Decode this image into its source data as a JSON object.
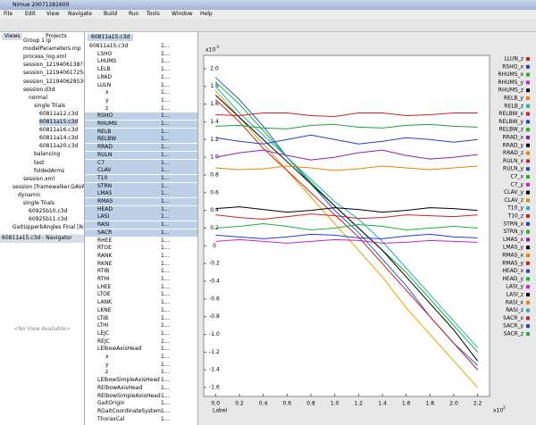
{
  "window_title": "Nimue 20071281600",
  "menu": [
    "File",
    "Edit",
    "View",
    "Navigate",
    "Build",
    "Run",
    "Tools",
    "Window",
    "Help"
  ],
  "left_panel": {
    "tabs": [
      "Views",
      "Projects"
    ],
    "tree": [
      "Group 1 ip",
      "modelParameters.mp",
      "process_log.xml",
      "session_1219406138???",
      "session_1219406172567",
      "session_1219406285362",
      "session.d3d",
      "normal",
      "single Trials",
      "60811a12.c3d",
      "60811a15.c3d",
      "60811a16.c3d",
      "60811a14.c3d",
      "60811a20.c3d",
      "balancing",
      "test",
      "foldedArms",
      "session.xml",
      "session [framewalker.GAVA...",
      "dynamic",
      "single Trials",
      "60925b10.c3d",
      "60925b11.c3d",
      "GaitUpperbAngles Final [N..."
    ]
  },
  "navigator": {
    "title": "60811a15.c3d - Navigator",
    "empty_text": "<No View Available>"
  },
  "middle_panel": {
    "tab": "60811a15.c3d",
    "column_text": "1...",
    "tree": [
      "60811a15.c3d",
      "LSHO",
      "LHUMS",
      "LELB",
      "LRAD",
      "LULN",
      "x",
      "y",
      "z",
      "RSHO",
      "RHUMS",
      "RELB",
      "RELBW",
      "RRAD",
      "RULN",
      "C7",
      "CLAV",
      "T10",
      "STRN",
      "LMAS",
      "RMAS",
      "HEAD",
      "LASI",
      "RASI",
      "SACR",
      "RHEE",
      "RTOE",
      "RANK",
      "RKNE",
      "RTIB",
      "RTHI",
      "LHEE",
      "LTOE",
      "LANK",
      "LKNE",
      "LTIB",
      "LTHI",
      "LEJC",
      "REJC",
      "LElbowAxisHead",
      "x",
      "y",
      "z",
      "LElbowSimpleAxisHead",
      "RElbowAxisHead",
      "RElbowSimpleAxisHead",
      "GaitOrigin",
      "RGaitCoordinateSystem",
      "ThoraxCal"
    ]
  },
  "chart_data": {
    "type": "line",
    "x_label": "Label",
    "x_scale": "x10",
    "x_scale_exp": "3",
    "y_scale": "x10",
    "y_scale_exp": "-5",
    "x": [
      0,
      0.2,
      0.4,
      0.6,
      0.8,
      1.0,
      1.2,
      1.4,
      1.6,
      1.8,
      2.0,
      2.2
    ],
    "xlim": [
      -0.1,
      2.3
    ],
    "xticks": [
      {
        "value": 0,
        "label": "0.0"
      },
      0.2,
      0.4,
      0.6,
      0.8,
      {
        "value": 1,
        "label": "1.0"
      },
      1.2,
      1.4,
      1.6,
      1.8,
      {
        "value": 2,
        "label": "2.0"
      },
      2.2
    ],
    "ylim": [
      -1.7,
      2.15
    ],
    "yticks": [
      {
        "value": 2,
        "label": "2.0"
      },
      1.8,
      1.6,
      1.4,
      1.2,
      {
        "value": 1,
        "label": "1.0"
      },
      0.8,
      0.6,
      0.4,
      0.2,
      0,
      -0.2,
      -0.4,
      -0.6,
      -0.8,
      {
        "value": -1,
        "label": "-1.0"
      },
      -1.2,
      -1.4,
      -1.6
    ],
    "series": [
      {
        "color": "#1f5fd0",
        "values": [
          1.9,
          1.65,
          1.35,
          1.0,
          0.7,
          0.4,
          0.15,
          -0.15,
          -0.45,
          -0.8,
          -1.1,
          -1.35
        ]
      },
      {
        "color": "#f0a000",
        "values": [
          1.75,
          1.45,
          1.15,
          0.85,
          0.55,
          0.25,
          -0.05,
          -0.35,
          -0.7,
          -1.0,
          -1.3,
          -1.6
        ]
      },
      {
        "color": "#20b030",
        "values": [
          1.85,
          1.6,
          1.3,
          1.0,
          0.72,
          0.45,
          0.2,
          -0.05,
          -0.3,
          -0.6,
          -0.9,
          -1.2
        ]
      },
      {
        "color": "#20b0c0",
        "values": [
          1.8,
          1.5,
          1.25,
          1.0,
          0.75,
          0.5,
          0.3,
          0.05,
          -0.25,
          -0.55,
          -0.85,
          -1.15
        ]
      },
      {
        "color": "#000000",
        "values": [
          1.7,
          1.45,
          1.2,
          0.95,
          0.7,
          0.45,
          0.2,
          -0.05,
          -0.35,
          -0.65,
          -0.95,
          -1.3
        ]
      },
      {
        "color": "#d02020",
        "values": [
          1.65,
          1.4,
          1.1,
          0.85,
          0.6,
          0.35,
          0.1,
          -0.2,
          -0.5,
          -0.8,
          -1.1,
          -1.4
        ]
      },
      {
        "color": "#d02020",
        "values": [
          1.48,
          1.47,
          1.5,
          1.5,
          1.47,
          1.46,
          1.5,
          1.5,
          1.47,
          1.48,
          1.5,
          1.5
        ]
      },
      {
        "color": "#20a040",
        "values": [
          1.35,
          1.36,
          1.33,
          1.32,
          1.36,
          1.37,
          1.34,
          1.33,
          1.36,
          1.37,
          1.35,
          1.34
        ]
      },
      {
        "color": "#2040d0",
        "values": [
          1.22,
          1.18,
          1.15,
          1.2,
          1.25,
          1.2,
          1.15,
          1.18,
          1.22,
          1.2,
          1.17,
          1.2
        ]
      },
      {
        "color": "#9020b0",
        "values": [
          1.0,
          1.05,
          1.08,
          1.02,
          0.97,
          1.0,
          1.05,
          1.08,
          1.02,
          0.98,
          1.0,
          1.03
        ]
      },
      {
        "color": "#f08000",
        "values": [
          0.88,
          0.86,
          0.87,
          0.9,
          0.88,
          0.85,
          0.87,
          0.9,
          0.88,
          0.86,
          0.88,
          0.9
        ]
      },
      {
        "color": "#000000",
        "values": [
          0.42,
          0.44,
          0.41,
          0.38,
          0.4,
          0.43,
          0.41,
          0.38,
          0.4,
          0.43,
          0.42,
          0.4
        ]
      },
      {
        "color": "#d02020",
        "values": [
          0.35,
          0.32,
          0.3,
          0.33,
          0.36,
          0.34,
          0.31,
          0.32,
          0.35,
          0.34,
          0.33,
          0.35
        ]
      },
      {
        "color": "#20b030",
        "values": [
          0.2,
          0.22,
          0.25,
          0.22,
          0.18,
          0.2,
          0.24,
          0.22,
          0.18,
          0.2,
          0.22,
          0.2
        ]
      },
      {
        "color": "#2040d0",
        "values": [
          0.12,
          0.1,
          0.08,
          0.1,
          0.13,
          0.12,
          0.09,
          0.08,
          0.11,
          0.13,
          0.1,
          0.09
        ]
      },
      {
        "color": "#d020d0",
        "values": [
          0.05,
          0.07,
          0.05,
          0.03,
          0.05,
          0.07,
          0.06,
          0.03,
          0.04,
          0.06,
          0.05,
          0.04
        ]
      }
    ],
    "legend": [
      {
        "name": "LLUN_z",
        "color": "#d02020"
      },
      {
        "name": "RSHO_x",
        "color": "#2040d0"
      },
      {
        "name": "RHUMS_x",
        "color": "#20b030"
      },
      {
        "name": "RHUMS_y",
        "color": "#d020d0"
      },
      {
        "name": "RHUMS_z",
        "color": "#000000"
      },
      {
        "name": "RELB_y",
        "color": "#f08000"
      },
      {
        "name": "RELB_z",
        "color": "#20b0c0"
      },
      {
        "name": "RELBW_x",
        "color": "#d02020"
      },
      {
        "name": "RELBW_y",
        "color": "#2040d0"
      },
      {
        "name": "RELBW_z",
        "color": "#20b030"
      },
      {
        "name": "RRAD_x",
        "color": "#9020b0"
      },
      {
        "name": "RRAD_y",
        "color": "#000000"
      },
      {
        "name": "RRAD_z",
        "color": "#f08000"
      },
      {
        "name": "RULN_x",
        "color": "#d02020"
      },
      {
        "name": "RULN_y",
        "color": "#2040d0"
      },
      {
        "name": "C7_x",
        "color": "#20b030"
      },
      {
        "name": "C7_y",
        "color": "#d020d0"
      },
      {
        "name": "CLAV_y",
        "color": "#000000"
      },
      {
        "name": "CLAV_z",
        "color": "#f08000"
      },
      {
        "name": "T10_y",
        "color": "#20b0c0"
      },
      {
        "name": "T10_z",
        "color": "#d02020"
      },
      {
        "name": "STRN_x",
        "color": "#2040d0"
      },
      {
        "name": "STRN_y",
        "color": "#20b030"
      },
      {
        "name": "LMAS_x",
        "color": "#9020b0"
      },
      {
        "name": "LMAS_y",
        "color": "#000000"
      },
      {
        "name": "RMAS_x",
        "color": "#f08000"
      },
      {
        "name": "RMAS_y",
        "color": "#d02020"
      },
      {
        "name": "HEAD_x",
        "color": "#2040d0"
      },
      {
        "name": "HEAD_y",
        "color": "#20b030"
      },
      {
        "name": "LASI_y",
        "color": "#d020d0"
      },
      {
        "name": "LASI_z",
        "color": "#000000"
      },
      {
        "name": "RASI_x",
        "color": "#f08000"
      },
      {
        "name": "RASI_z",
        "color": "#20b0c0"
      },
      {
        "name": "SACR_x",
        "color": "#d02020"
      },
      {
        "name": "SACR_y",
        "color": "#2040d0"
      },
      {
        "name": "SACR_z",
        "color": "#20b030"
      }
    ]
  }
}
